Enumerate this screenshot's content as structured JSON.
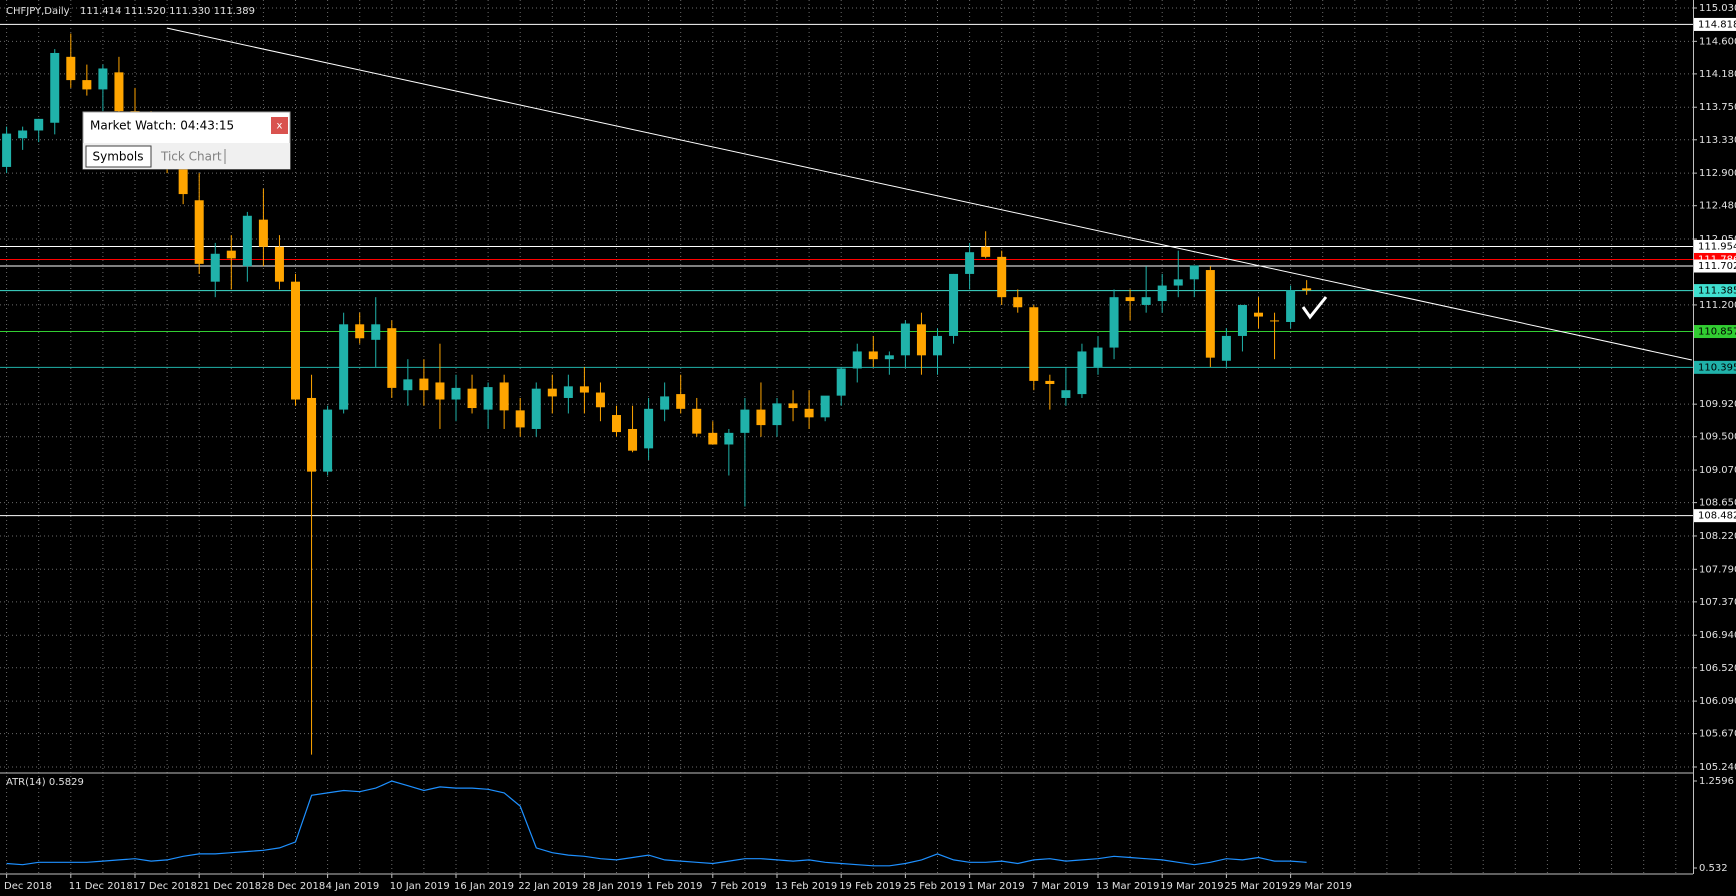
{
  "chart_data": {
    "type": "candlestick",
    "title": "CHFJPY,Daily",
    "subtitle": "111.414 111.520 111.330 111.389",
    "categories": [
      "Dec 2018",
      null,
      null,
      null,
      "11 Dec 2018",
      null,
      null,
      null,
      "17 Dec 2018",
      null,
      null,
      null,
      "21 Dec 2018",
      null,
      null,
      null,
      "28 Dec 2018",
      null,
      null,
      null,
      "4 Jan 2019",
      null,
      null,
      null,
      "10 Jan 2019",
      null,
      null,
      null,
      "16 Jan 2019",
      null,
      null,
      null,
      "22 Jan 2019",
      null,
      null,
      null,
      "28 Jan 2019",
      null,
      null,
      null,
      "1 Feb 2019",
      null,
      null,
      null,
      "7 Feb 2019",
      null,
      null,
      null,
      "13 Feb 2019",
      null,
      null,
      null,
      "19 Feb 2019",
      null,
      null,
      null,
      "25 Feb 2019",
      null,
      null,
      null,
      "1 Mar 2019",
      null,
      null,
      null,
      "7 Mar 2019",
      null,
      null,
      null,
      "13 Mar 2019",
      null,
      null,
      null,
      "19 Mar 2019",
      null,
      null,
      null,
      "25 Mar 2019",
      null,
      null,
      null,
      "29 Mar 2019",
      null
    ],
    "ohlc": [
      [
        112.98,
        113.5,
        112.9,
        113.41
      ],
      [
        113.35,
        113.5,
        113.2,
        113.45
      ],
      [
        113.45,
        113.6,
        113.3,
        113.6
      ],
      [
        113.55,
        114.5,
        113.4,
        114.45
      ],
      [
        114.4,
        114.7,
        114.0,
        114.1
      ],
      [
        114.1,
        114.3,
        113.9,
        113.98
      ],
      [
        113.98,
        114.3,
        113.7,
        114.25
      ],
      [
        114.2,
        114.4,
        113.6,
        113.7
      ],
      [
        113.7,
        114.0,
        113.3,
        113.5
      ],
      [
        113.5,
        113.7,
        113.1,
        113.2
      ],
      [
        113.2,
        113.4,
        112.9,
        113.05
      ],
      [
        113.0,
        113.3,
        112.5,
        112.63
      ],
      [
        112.55,
        112.9,
        111.6,
        111.73
      ],
      [
        111.5,
        112.0,
        111.3,
        111.86
      ],
      [
        111.9,
        112.1,
        111.4,
        111.8
      ],
      [
        111.7,
        112.4,
        111.5,
        112.35
      ],
      [
        112.3,
        112.7,
        111.7,
        111.95
      ],
      [
        111.95,
        112.1,
        111.4,
        111.5
      ],
      [
        111.5,
        111.6,
        109.9,
        109.98
      ],
      [
        110.0,
        110.3,
        105.4,
        109.05
      ],
      [
        109.05,
        109.9,
        109.0,
        109.85
      ],
      [
        109.85,
        111.1,
        109.8,
        110.95
      ],
      [
        110.95,
        111.1,
        110.7,
        110.77
      ],
      [
        110.75,
        111.3,
        110.4,
        110.95
      ],
      [
        110.9,
        111.0,
        110.0,
        110.13
      ],
      [
        110.1,
        110.5,
        109.9,
        110.24
      ],
      [
        110.25,
        110.5,
        109.9,
        110.1
      ],
      [
        110.2,
        110.7,
        109.6,
        109.98
      ],
      [
        109.98,
        110.3,
        109.7,
        110.13
      ],
      [
        110.12,
        110.3,
        109.8,
        109.87
      ],
      [
        109.85,
        110.2,
        109.6,
        110.14
      ],
      [
        110.2,
        110.3,
        109.6,
        109.84
      ],
      [
        109.84,
        110.0,
        109.5,
        109.62
      ],
      [
        109.6,
        110.2,
        109.5,
        110.12
      ],
      [
        110.12,
        110.3,
        109.8,
        110.02
      ],
      [
        110.0,
        110.3,
        109.8,
        110.15
      ],
      [
        110.15,
        110.4,
        109.8,
        110.07
      ],
      [
        110.07,
        110.2,
        109.7,
        109.88
      ],
      [
        109.78,
        109.9,
        109.5,
        109.56
      ],
      [
        109.6,
        109.9,
        109.3,
        109.32
      ],
      [
        109.35,
        110.0,
        109.2,
        109.86
      ],
      [
        109.85,
        110.2,
        109.7,
        110.02
      ],
      [
        110.05,
        110.3,
        109.8,
        109.86
      ],
      [
        109.86,
        110.0,
        109.5,
        109.54
      ],
      [
        109.55,
        109.7,
        109.4,
        109.4
      ],
      [
        109.4,
        109.6,
        109.0,
        109.55
      ],
      [
        109.55,
        110.0,
        108.6,
        109.85
      ],
      [
        109.85,
        110.2,
        109.5,
        109.65
      ],
      [
        109.65,
        110.0,
        109.5,
        109.93
      ],
      [
        109.93,
        110.1,
        109.7,
        109.87
      ],
      [
        109.86,
        110.1,
        109.6,
        109.75
      ],
      [
        109.75,
        110.0,
        109.7,
        110.03
      ],
      [
        110.03,
        110.4,
        109.9,
        110.38
      ],
      [
        110.38,
        110.7,
        110.2,
        110.6
      ],
      [
        110.6,
        110.8,
        110.4,
        110.5
      ],
      [
        110.5,
        110.6,
        110.3,
        110.55
      ],
      [
        110.55,
        111.0,
        110.4,
        110.96
      ],
      [
        110.95,
        111.1,
        110.3,
        110.55
      ],
      [
        110.55,
        110.9,
        110.3,
        110.8
      ],
      [
        110.8,
        111.6,
        110.7,
        111.6
      ],
      [
        111.6,
        112.0,
        111.4,
        111.88
      ],
      [
        111.95,
        112.15,
        111.8,
        111.82
      ],
      [
        111.82,
        111.9,
        111.2,
        111.3
      ],
      [
        111.3,
        111.4,
        111.1,
        111.17
      ],
      [
        111.17,
        111.2,
        110.1,
        110.22
      ],
      [
        110.22,
        110.3,
        109.85,
        110.18
      ],
      [
        110.0,
        110.4,
        109.9,
        110.1
      ],
      [
        110.05,
        110.7,
        110.0,
        110.6
      ],
      [
        110.4,
        110.8,
        110.3,
        110.65
      ],
      [
        110.65,
        111.4,
        110.5,
        111.3
      ],
      [
        111.3,
        111.4,
        111.0,
        111.25
      ],
      [
        111.2,
        111.7,
        111.1,
        111.3
      ],
      [
        111.25,
        111.6,
        111.1,
        111.45
      ],
      [
        111.45,
        111.9,
        111.3,
        111.53
      ],
      [
        111.53,
        111.7,
        111.3,
        111.71
      ],
      [
        111.65,
        111.7,
        110.4,
        110.52
      ],
      [
        110.48,
        110.9,
        110.4,
        110.8
      ],
      [
        110.8,
        111.2,
        110.6,
        111.2
      ],
      [
        111.1,
        111.3,
        110.9,
        111.05
      ],
      [
        111.0,
        111.1,
        110.5,
        110.99
      ],
      [
        110.98,
        111.45,
        110.9,
        111.39
      ],
      [
        111.414,
        111.52,
        111.33,
        111.389
      ]
    ],
    "colors": {
      "up": "#20b2aa",
      "down": "#ffa500"
    },
    "ylim": [
      105.24,
      115.03
    ],
    "yticks": [
      {
        "value": 115.03,
        "label": "115.030"
      },
      {
        "value": 114.6,
        "label": "114.600"
      },
      {
        "value": 114.18,
        "label": "114.180"
      },
      {
        "value": 113.75,
        "label": "113.750"
      },
      {
        "value": 113.33,
        "label": "113.330"
      },
      {
        "value": 112.9,
        "label": "112.900"
      },
      {
        "value": 112.48,
        "label": "112.480"
      },
      {
        "value": 112.05,
        "label": "112.050"
      },
      {
        "value": 111.2,
        "label": "111.200"
      },
      {
        "value": 109.92,
        "label": "109.920"
      },
      {
        "value": 109.5,
        "label": "109.500"
      },
      {
        "value": 109.07,
        "label": "109.070"
      },
      {
        "value": 108.65,
        "label": "108.650"
      },
      {
        "value": 108.22,
        "label": "108.220"
      },
      {
        "value": 107.79,
        "label": "107.790"
      },
      {
        "value": 107.37,
        "label": "107.370"
      },
      {
        "value": 106.94,
        "label": "106.940"
      },
      {
        "value": 106.52,
        "label": "106.520"
      },
      {
        "value": 106.09,
        "label": "106.090"
      },
      {
        "value": 105.67,
        "label": "105.670"
      },
      {
        "value": 105.24,
        "label": "105.240"
      }
    ],
    "grid": true,
    "levels": [
      {
        "value": 114.818,
        "color": "#ffffff"
      },
      {
        "value": 111.954,
        "color": "#ffffff"
      },
      {
        "value": 111.786,
        "color": "#ff0000"
      },
      {
        "value": 111.702,
        "color": "#ffffff"
      },
      {
        "value": 111.385,
        "color": "#40e0d0"
      },
      {
        "value": 110.857,
        "color": "#32cd32"
      },
      {
        "value": 110.395,
        "color": "#20b2aa"
      },
      {
        "value": 108.482,
        "color": "#ffffff"
      }
    ],
    "trendline": {
      "x": [
        10,
        105
      ],
      "y": [
        114.77,
        110.49
      ],
      "color": "#ffffff"
    },
    "indicator": {
      "type": "line",
      "title": "ATR(14) 0.5829",
      "color": "#1e90ff",
      "ylim": [
        0.532,
        1.2596
      ],
      "yticks": [
        1.2596,
        0.532
      ],
      "values": [
        0.57,
        0.56,
        0.58,
        0.58,
        0.58,
        0.58,
        0.59,
        0.6,
        0.61,
        0.59,
        0.6,
        0.63,
        0.65,
        0.65,
        0.66,
        0.67,
        0.68,
        0.7,
        0.75,
        1.14,
        1.16,
        1.18,
        1.17,
        1.2,
        1.26,
        1.22,
        1.18,
        1.21,
        1.2,
        1.2,
        1.19,
        1.16,
        1.05,
        0.7,
        0.66,
        0.64,
        0.63,
        0.61,
        0.6,
        0.62,
        0.64,
        0.6,
        0.59,
        0.58,
        0.57,
        0.59,
        0.61,
        0.61,
        0.6,
        0.59,
        0.6,
        0.58,
        0.57,
        0.56,
        0.55,
        0.55,
        0.57,
        0.6,
        0.65,
        0.6,
        0.58,
        0.58,
        0.59,
        0.57,
        0.6,
        0.61,
        0.59,
        0.6,
        0.61,
        0.63,
        0.62,
        0.61,
        0.6,
        0.58,
        0.56,
        0.58,
        0.61,
        0.6,
        0.62,
        0.59,
        0.59,
        0.58
      ]
    }
  },
  "market_watch": {
    "title": "Market Watch: 04:43:15",
    "close": "x",
    "tabs": [
      "Symbols",
      "Tick Chart"
    ]
  }
}
